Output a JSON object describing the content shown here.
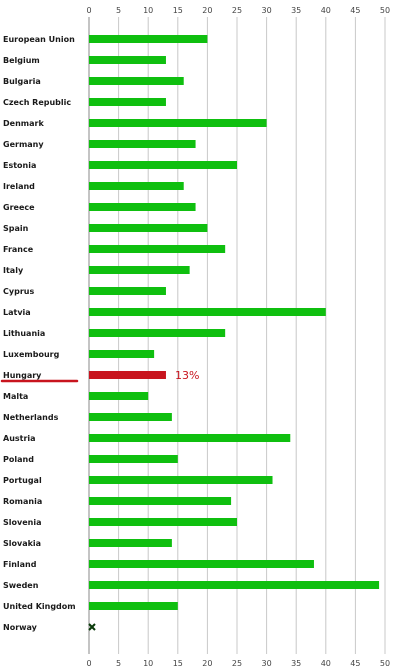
{
  "chart_data": {
    "type": "bar",
    "orientation": "horizontal",
    "categories": [
      "European Union",
      "Belgium",
      "Bulgaria",
      "Czech Republic",
      "Denmark",
      "Germany",
      "Estonia",
      "Ireland",
      "Greece",
      "Spain",
      "France",
      "Italy",
      "Cyprus",
      "Latvia",
      "Lithuania",
      "Luxembourg",
      "Hungary",
      "Malta",
      "Netherlands",
      "Austria",
      "Poland",
      "Portugal",
      "Romania",
      "Slovenia",
      "Slovakia",
      "Finland",
      "Sweden",
      "United Kingdom",
      "Norway"
    ],
    "values": [
      20,
      13,
      16,
      13,
      30,
      18,
      25,
      16,
      18,
      20,
      23,
      17,
      13,
      40,
      23,
      11,
      13,
      10,
      14,
      34,
      15,
      31,
      24,
      25,
      14,
      38,
      49,
      15,
      null
    ],
    "xlim": [
      0,
      50
    ],
    "xticks": [
      0,
      5,
      10,
      15,
      20,
      25,
      30,
      35,
      40,
      45,
      50
    ],
    "grid": true,
    "highlight": {
      "category": "Hungary",
      "label": "13%"
    },
    "missing_marker": {
      "category": "Norway",
      "value": 0
    },
    "colors": {
      "bar": "#0fbf0f",
      "highlight": "#c8141e",
      "grid": "#c8c8c8",
      "marker": "#0a3a0a"
    }
  }
}
